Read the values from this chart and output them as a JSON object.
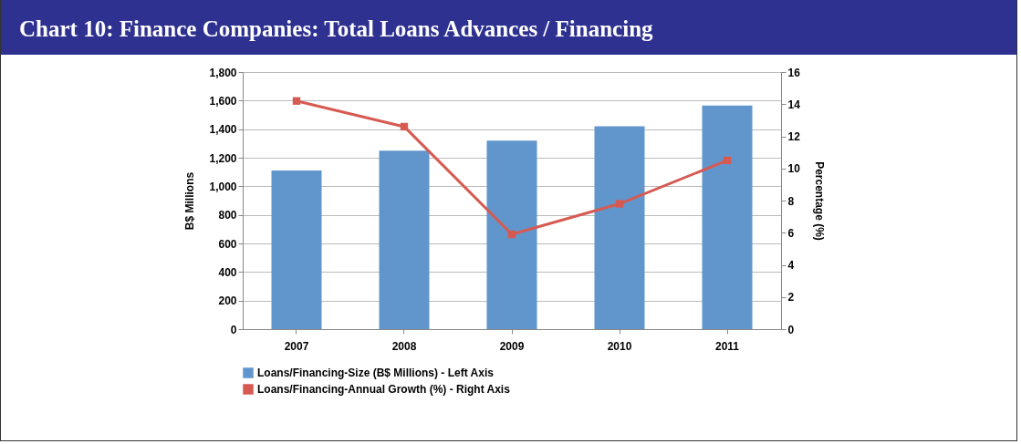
{
  "chart_data": {
    "type": "bar",
    "title": "Chart 10: Finance Companies: Total Loans Advances / Financing",
    "ylabel": "B$ Millions",
    "y2label": "Percentage (%)",
    "categories": [
      "2007",
      "2008",
      "2009",
      "2010",
      "2011"
    ],
    "series": [
      {
        "name": "Loans/Financing-Size (B$ Millions) - Left Axis",
        "color": "#6196cc",
        "values": [
          1110,
          1250,
          1320,
          1420,
          1565
        ]
      },
      {
        "name": "Loans/Financing-Annual Growth (%) - Right Axis",
        "type": "line",
        "axis": "y2",
        "color": "#d65a52",
        "values": [
          14.2,
          12.6,
          5.9,
          7.8,
          10.5
        ]
      }
    ],
    "ylim": [
      0,
      1800
    ],
    "yticks": [
      0,
      200,
      400,
      600,
      800,
      {
        "value": 1000,
        "label": "1,000"
      },
      {
        "value": 1200,
        "label": "1,200"
      },
      {
        "value": 1400,
        "label": "1,400"
      },
      {
        "value": 1600,
        "label": "1,600"
      },
      {
        "value": 1800,
        "label": "1,800"
      }
    ],
    "y2lim": [
      0,
      16
    ],
    "y2ticks": [
      0,
      2,
      4,
      6,
      8,
      10,
      12,
      14,
      16
    ],
    "grid": "y",
    "legend": "bottom",
    "marker": "square",
    "line_style": "solid"
  }
}
